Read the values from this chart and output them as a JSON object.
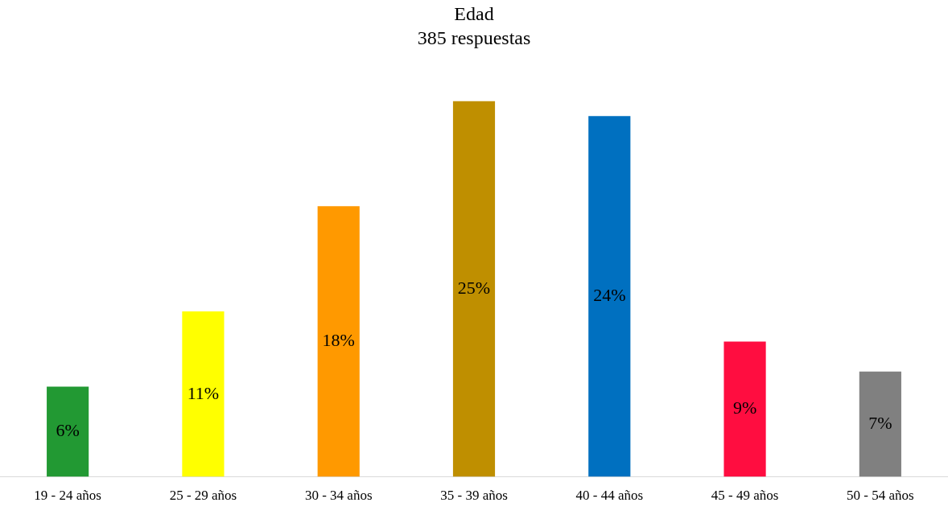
{
  "chart_data": {
    "type": "bar",
    "title": "Edad",
    "subtitle": "385 respuestas",
    "categories": [
      "19 - 24 años",
      "25 - 29 años",
      "30 - 34 años",
      "35 - 39 años",
      "40 - 44 años",
      "45 - 49 años",
      "50 - 54 años"
    ],
    "values": [
      6,
      11,
      18,
      25,
      24,
      9,
      7
    ],
    "colors": [
      "#229933",
      "#ffff00",
      "#ff9900",
      "#bf8f00",
      "#0070c0",
      "#ff0d40",
      "#808080"
    ],
    "value_labels": [
      "6%",
      "11%",
      "18%",
      "25%",
      "24%",
      "9%",
      "7%"
    ],
    "grid": false,
    "legend": false
  }
}
